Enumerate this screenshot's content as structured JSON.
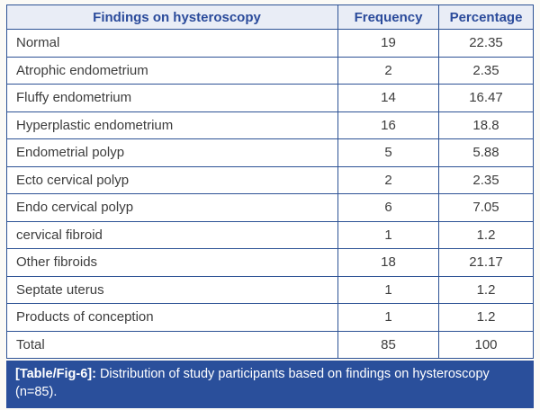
{
  "table": {
    "columns": [
      "Findings on hysteroscopy",
      "Frequency",
      "Percentage"
    ],
    "rows": [
      {
        "finding": "Normal",
        "frequency": "19",
        "percentage": "22.35"
      },
      {
        "finding": "Atrophic endometrium",
        "frequency": "2",
        "percentage": "2.35"
      },
      {
        "finding": "Fluffy endometrium",
        "frequency": "14",
        "percentage": "16.47"
      },
      {
        "finding": "Hyperplastic endometrium",
        "frequency": "16",
        "percentage": "18.8"
      },
      {
        "finding": "Endometrial polyp",
        "frequency": "5",
        "percentage": "5.88"
      },
      {
        "finding": "Ecto cervical polyp",
        "frequency": "2",
        "percentage": "2.35"
      },
      {
        "finding": "Endo cervical polyp",
        "frequency": "6",
        "percentage": "7.05"
      },
      {
        "finding": "cervical fibroid",
        "frequency": "1",
        "percentage": "1.2"
      },
      {
        "finding": "Other fibroids",
        "frequency": "18",
        "percentage": "21.17"
      },
      {
        "finding": "Septate uterus",
        "frequency": "1",
        "percentage": "1.2"
      },
      {
        "finding": "Products of conception",
        "frequency": "1",
        "percentage": "1.2"
      },
      {
        "finding": "Total",
        "frequency": "85",
        "percentage": "100"
      }
    ]
  },
  "caption": {
    "label": "[Table/Fig-6]:",
    "text": "Distribution of study participants based on findings on hysteroscopy (n=85)."
  },
  "colors": {
    "border_blue": "#2d5295",
    "header_bg": "#e9edf6",
    "header_text": "#2b4b9b",
    "body_text": "#3d3d3d",
    "caption_bg": "#2a4f9b",
    "caption_text": "#ffffff",
    "page_bg": "#fbfaf6"
  },
  "chart_data": {
    "type": "table",
    "title": "[Table/Fig-6]: Distribution of study participants based on findings on hysteroscopy (n=85).",
    "columns": [
      "Findings on hysteroscopy",
      "Frequency",
      "Percentage"
    ],
    "categories": [
      "Normal",
      "Atrophic endometrium",
      "Fluffy endometrium",
      "Hyperplastic endometrium",
      "Endometrial polyp",
      "Ecto cervical polyp",
      "Endo cervical polyp",
      "cervical fibroid",
      "Other fibroids",
      "Septate uterus",
      "Products of conception",
      "Total"
    ],
    "series": [
      {
        "name": "Frequency",
        "values": [
          19,
          2,
          14,
          16,
          5,
          2,
          6,
          1,
          18,
          1,
          1,
          85
        ]
      },
      {
        "name": "Percentage",
        "values": [
          22.35,
          2.35,
          16.47,
          18.8,
          5.88,
          2.35,
          7.05,
          1.2,
          21.17,
          1.2,
          1.2,
          100
        ]
      }
    ]
  }
}
